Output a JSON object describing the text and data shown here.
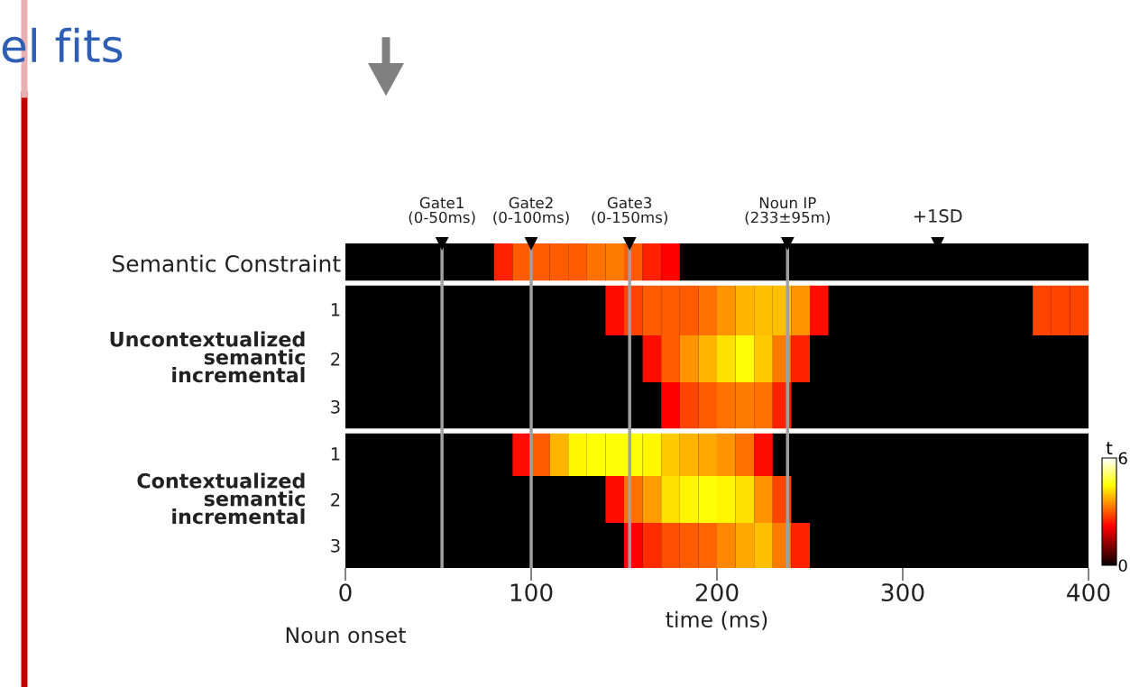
{
  "chart_data": {
    "type": "heatmap",
    "xlabel": "time (ms)",
    "clabel": "t",
    "annotations": [
      "el fits",
      "+1SD",
      "Uncontextualized\nsemantic\nincremental",
      "Contextualized\nsemantic\nincremental",
      "Noun onset"
    ],
    "x": [
      5,
      15,
      25,
      35,
      45,
      55,
      65,
      75,
      85,
      95,
      105,
      115,
      125,
      135,
      145,
      155,
      165,
      175,
      185,
      195,
      205,
      215,
      225,
      235,
      245,
      255,
      265,
      275,
      285,
      295,
      305,
      315,
      325,
      335,
      345,
      355,
      365,
      375,
      385,
      395
    ],
    "y_categories": [
      "Semantic Constraint",
      "1",
      "2",
      "3",
      "1",
      "2",
      "3"
    ],
    "cells": [
      [
        null,
        null,
        null,
        null,
        null,
        null,
        null,
        null,
        2.5,
        3,
        3,
        3,
        3,
        3.2,
        3.3,
        3,
        2.5,
        2.2,
        null,
        null,
        null,
        null,
        null,
        null,
        null,
        null,
        null,
        null,
        null,
        null,
        null,
        null,
        null,
        null,
        null,
        null,
        null,
        null,
        null,
        null
      ],
      [
        null,
        null,
        null,
        null,
        null,
        null,
        null,
        null,
        null,
        null,
        null,
        null,
        null,
        null,
        2.3,
        2.8,
        3,
        3,
        3,
        3.2,
        3.5,
        3.8,
        3.9,
        3.9,
        3.5,
        2.3,
        null,
        null,
        null,
        null,
        null,
        null,
        null,
        null,
        null,
        null,
        null,
        2.8,
        2.8,
        2.8
      ],
      [
        null,
        null,
        null,
        null,
        null,
        null,
        null,
        null,
        null,
        null,
        null,
        null,
        null,
        null,
        null,
        null,
        2.3,
        3,
        3.5,
        3.8,
        4.2,
        4.5,
        4,
        3.3,
        2.5,
        null,
        null,
        null,
        null,
        null,
        null,
        null,
        null,
        null,
        null,
        null,
        null,
        null,
        null,
        null
      ],
      [
        null,
        null,
        null,
        null,
        null,
        null,
        null,
        null,
        null,
        null,
        null,
        null,
        null,
        null,
        null,
        null,
        null,
        2.2,
        2.8,
        3,
        3.2,
        3.3,
        3.2,
        2.5,
        null,
        null,
        null,
        null,
        null,
        null,
        null,
        null,
        null,
        null,
        null,
        null,
        null,
        null,
        null,
        null
      ],
      [
        null,
        null,
        null,
        null,
        null,
        null,
        null,
        null,
        null,
        2.3,
        3,
        3.8,
        4.4,
        4.5,
        4.5,
        4.5,
        4.4,
        4,
        3.8,
        3.7,
        3.5,
        3.2,
        2.3,
        null,
        null,
        null,
        null,
        null,
        null,
        null,
        null,
        null,
        null,
        null,
        null,
        null,
        null,
        null,
        null,
        null
      ],
      [
        null,
        null,
        null,
        null,
        null,
        null,
        null,
        null,
        null,
        null,
        null,
        null,
        null,
        null,
        2.3,
        3.2,
        3.6,
        4.2,
        4.4,
        4.5,
        4.4,
        4.2,
        3.5,
        2.8,
        null,
        null,
        null,
        null,
        null,
        null,
        null,
        null,
        null,
        null,
        null,
        null,
        null,
        null,
        null,
        null
      ],
      [
        null,
        null,
        null,
        null,
        null,
        null,
        null,
        null,
        null,
        null,
        null,
        null,
        null,
        null,
        null,
        2.2,
        2.6,
        2.9,
        3,
        3.1,
        3.4,
        3.7,
        3.9,
        3.3,
        2.5,
        null,
        null,
        null,
        null,
        null,
        null,
        null,
        null,
        null,
        null,
        null,
        null,
        null,
        null,
        null
      ]
    ],
    "clim": [
      0,
      6
    ],
    "cticks": [
      0,
      6
    ],
    "xlim": [
      0,
      400
    ],
    "xticks": [
      0,
      100,
      200,
      300,
      400
    ],
    "ref_lines": [
      {
        "axis": "x",
        "value": 52,
        "label": "Gate1\n(0-50ms)",
        "color": "#a0a0a0"
      },
      {
        "axis": "x",
        "value": 100,
        "label": "Gate2\n(0-100ms)",
        "color": "#a0a0a0"
      },
      {
        "axis": "x",
        "value": 153,
        "label": "Gate3\n(0-150ms)",
        "color": "#a0a0a0"
      },
      {
        "axis": "x",
        "value": 238,
        "label": "Noun IP\n(233±95m)",
        "color": "#a0a0a0"
      }
    ]
  }
}
